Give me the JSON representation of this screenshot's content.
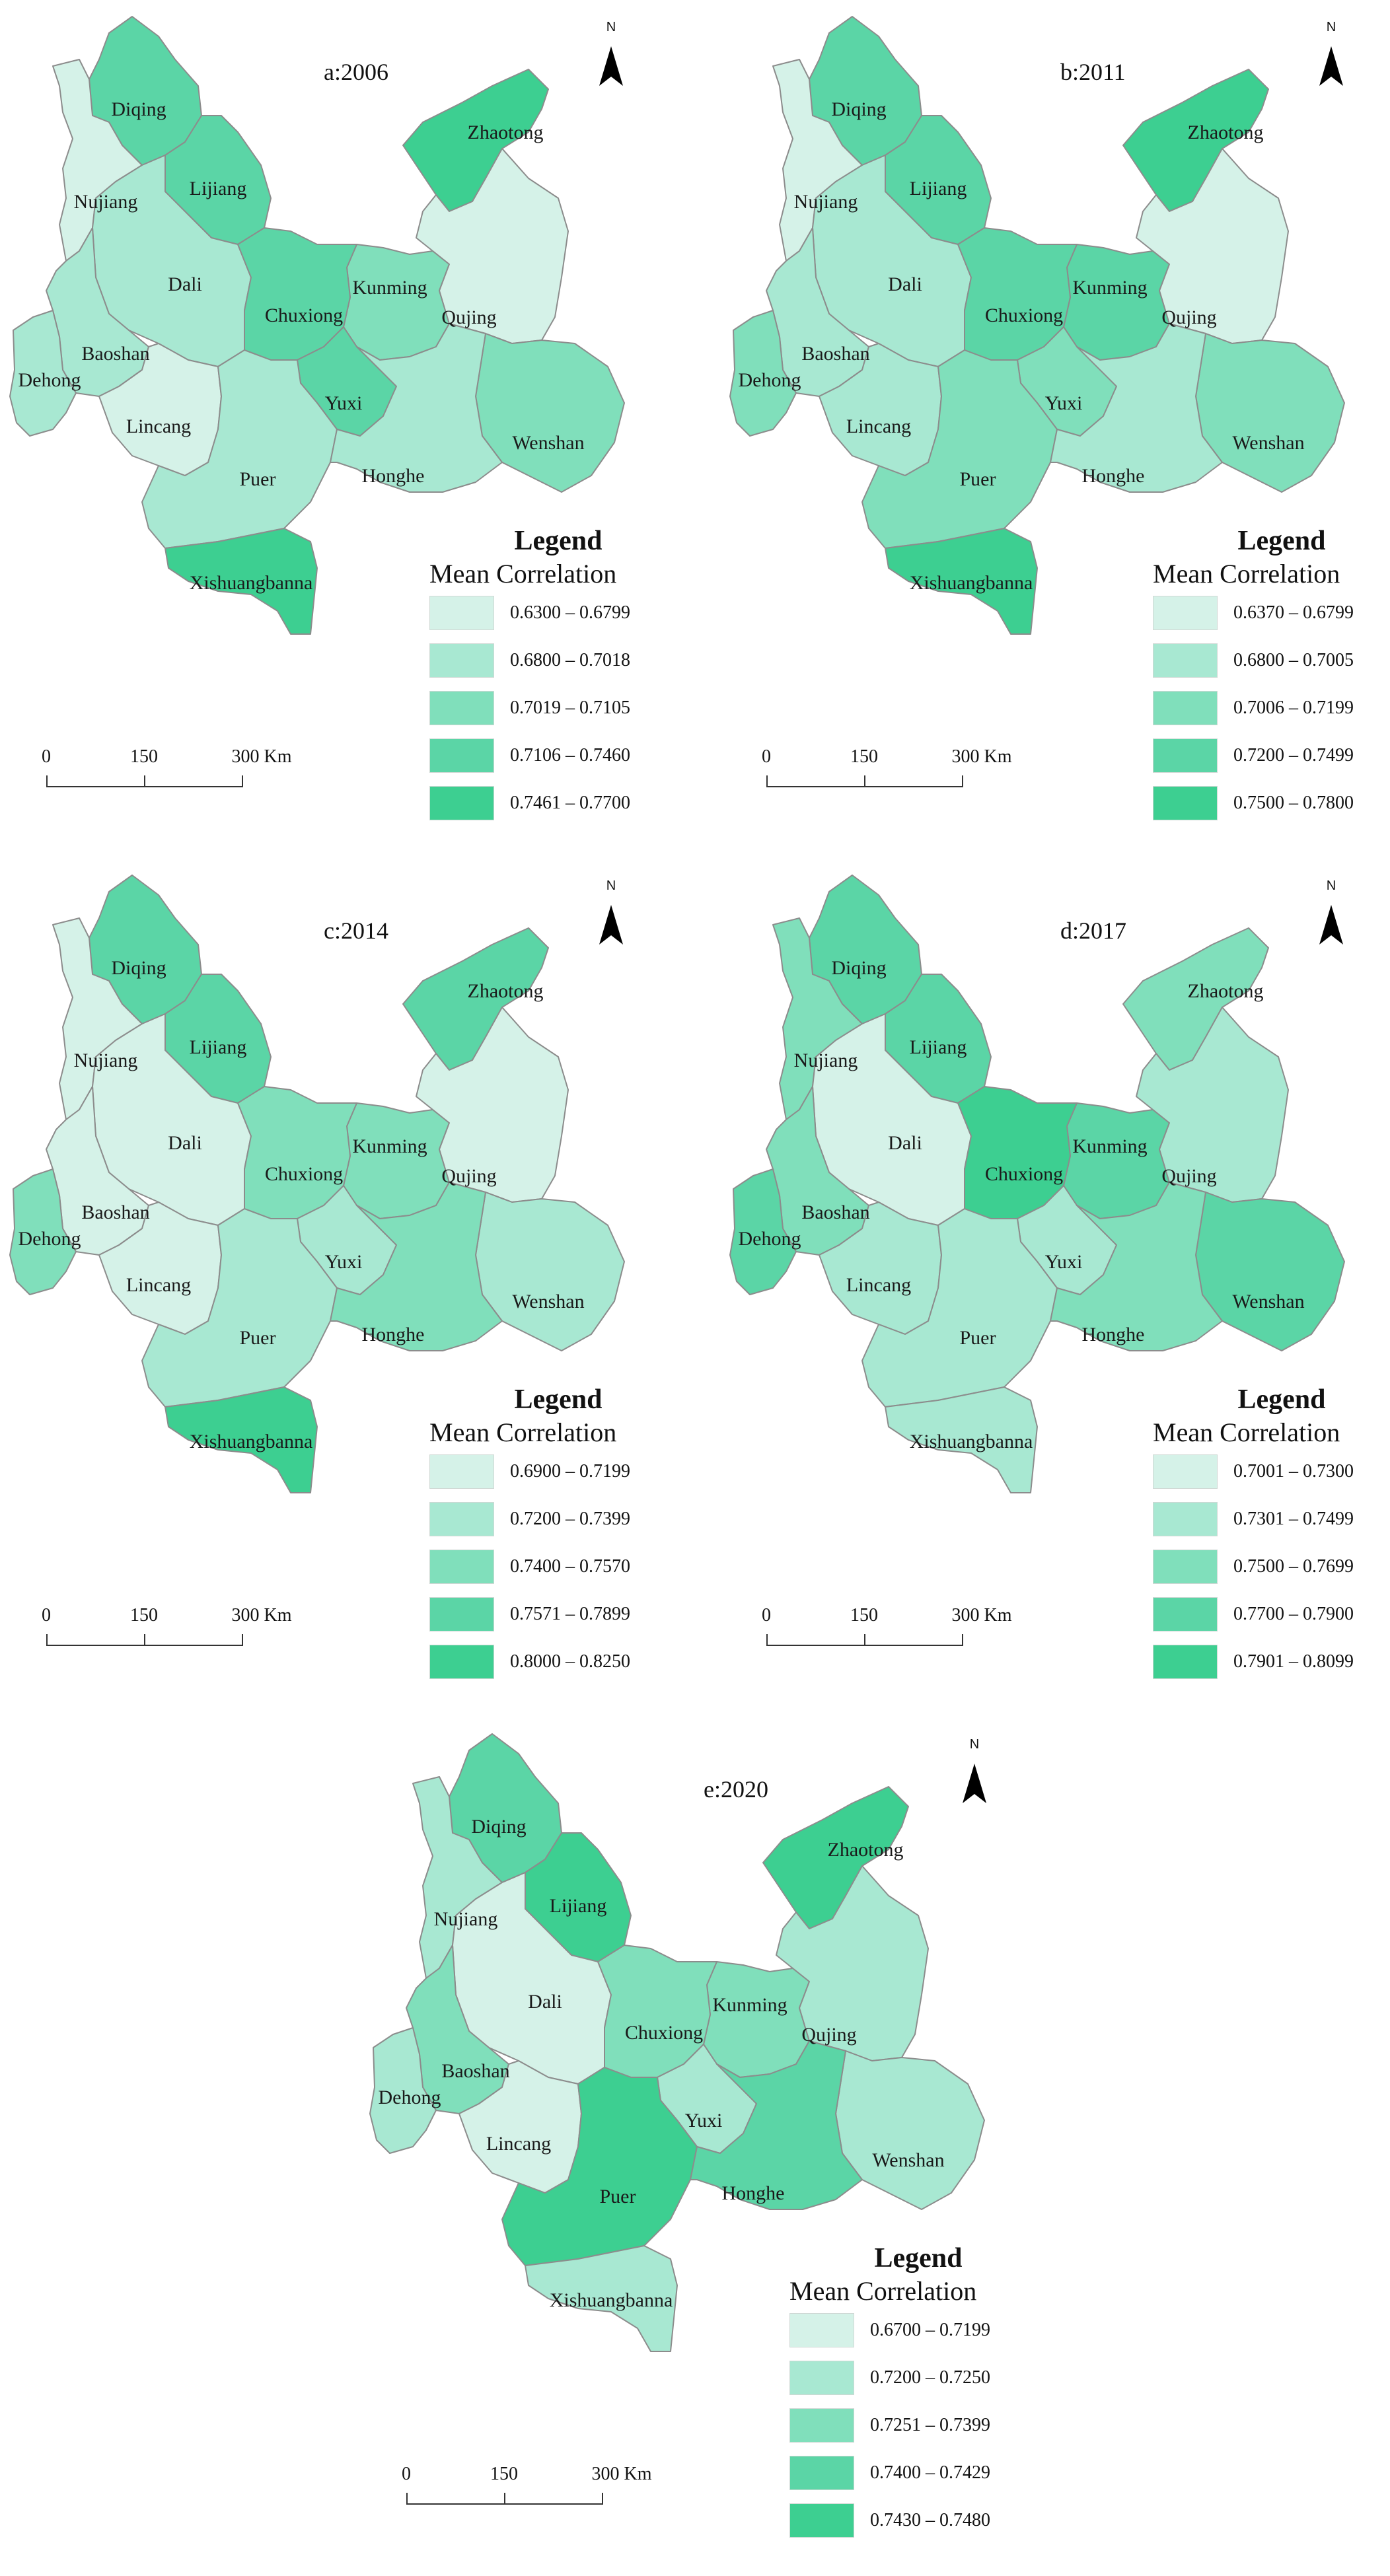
{
  "panels": [
    {
      "title": "a:2006",
      "legend": {
        "title": "Legend",
        "subtitle": "Mean Correlation",
        "classes": [
          {
            "range": "0.6300 – 0.6799",
            "color": "#d5f2e8"
          },
          {
            "range": "0.6800 – 0.7018",
            "color": "#a8e8d2"
          },
          {
            "range": "0.7019 – 0.7105",
            "color": "#80dfbb"
          },
          {
            "range": "0.7106 – 0.7460",
            "color": "#5bd5a6"
          },
          {
            "range": "0.7461 – 0.7700",
            "color": "#3dcf91"
          }
        ]
      },
      "regions": {
        "Diqing": 3,
        "Nujiang": 0,
        "Lijiang": 3,
        "Zhaotong": 4,
        "Dali": 1,
        "Kunming": 2,
        "Chuxiong": 3,
        "Qujing": 0,
        "Baoshan": 1,
        "Dehong": 1,
        "Lincang": 0,
        "Yuxi": 3,
        "Wenshan": 2,
        "Puer": 1,
        "Honghe": 1,
        "Xishuangbanna": 4
      }
    },
    {
      "title": "b:2011",
      "legend": {
        "title": "Legend",
        "subtitle": "Mean Correlation",
        "classes": [
          {
            "range": "0.6370 – 0.6799",
            "color": "#d5f2e8"
          },
          {
            "range": "0.6800 – 0.7005",
            "color": "#a8e8d2"
          },
          {
            "range": "0.7006 – 0.7199",
            "color": "#80dfbb"
          },
          {
            "range": "0.7200 – 0.7499",
            "color": "#5bd5a6"
          },
          {
            "range": "0.7500 – 0.7800",
            "color": "#3dcf91"
          }
        ]
      },
      "regions": {
        "Diqing": 3,
        "Nujiang": 0,
        "Lijiang": 3,
        "Zhaotong": 4,
        "Dali": 1,
        "Kunming": 3,
        "Chuxiong": 3,
        "Qujing": 0,
        "Baoshan": 1,
        "Dehong": 2,
        "Lincang": 1,
        "Yuxi": 2,
        "Wenshan": 2,
        "Puer": 2,
        "Honghe": 1,
        "Xishuangbanna": 4
      }
    },
    {
      "title": "c:2014",
      "legend": {
        "title": "Legend",
        "subtitle": "Mean Correlation",
        "classes": [
          {
            "range": "0.6900 – 0.7199",
            "color": "#d5f2e8"
          },
          {
            "range": "0.7200 – 0.7399",
            "color": "#a8e8d2"
          },
          {
            "range": "0.7400 – 0.7570",
            "color": "#80dfbb"
          },
          {
            "range": "0.7571 – 0.7899",
            "color": "#5bd5a6"
          },
          {
            "range": "0.8000 – 0.8250",
            "color": "#3dcf91"
          }
        ]
      },
      "regions": {
        "Diqing": 3,
        "Nujiang": 0,
        "Lijiang": 3,
        "Zhaotong": 3,
        "Dali": 0,
        "Kunming": 2,
        "Chuxiong": 2,
        "Qujing": 0,
        "Baoshan": 0,
        "Dehong": 2,
        "Lincang": 0,
        "Yuxi": 1,
        "Wenshan": 1,
        "Puer": 1,
        "Honghe": 2,
        "Xishuangbanna": 4
      }
    },
    {
      "title": "d:2017",
      "legend": {
        "title": "Legend",
        "subtitle": "Mean Correlation",
        "classes": [
          {
            "range": "0.7001 – 0.7300",
            "color": "#d5f2e8"
          },
          {
            "range": "0.7301 – 0.7499",
            "color": "#a8e8d2"
          },
          {
            "range": "0.7500 – 0.7699",
            "color": "#80dfbb"
          },
          {
            "range": "0.7700 – 0.7900",
            "color": "#5bd5a6"
          },
          {
            "range": "0.7901 – 0.8099",
            "color": "#3dcf91"
          }
        ]
      },
      "regions": {
        "Diqing": 3,
        "Nujiang": 2,
        "Lijiang": 3,
        "Zhaotong": 2,
        "Dali": 0,
        "Kunming": 3,
        "Chuxiong": 4,
        "Qujing": 1,
        "Baoshan": 2,
        "Dehong": 3,
        "Lincang": 1,
        "Yuxi": 1,
        "Wenshan": 3,
        "Puer": 1,
        "Honghe": 2,
        "Xishuangbanna": 1
      }
    },
    {
      "title": "e:2020",
      "legend": {
        "title": "Legend",
        "subtitle": "Mean Correlation",
        "classes": [
          {
            "range": "0.6700 – 0.7199",
            "color": "#d5f2e8"
          },
          {
            "range": "0.7200 – 0.7250",
            "color": "#a8e8d2"
          },
          {
            "range": "0.7251 – 0.7399",
            "color": "#80dfbb"
          },
          {
            "range": "0.7400 – 0.7429",
            "color": "#5bd5a6"
          },
          {
            "range": "0.7430 – 0.7480",
            "color": "#3dcf91"
          }
        ]
      },
      "regions": {
        "Diqing": 3,
        "Nujiang": 1,
        "Lijiang": 4,
        "Zhaotong": 4,
        "Dali": 0,
        "Kunming": 2,
        "Chuxiong": 2,
        "Qujing": 1,
        "Baoshan": 2,
        "Dehong": 1,
        "Lincang": 0,
        "Yuxi": 1,
        "Wenshan": 1,
        "Puer": 4,
        "Honghe": 3,
        "Xishuangbanna": 1
      }
    }
  ],
  "north_label": "N",
  "scale": {
    "ticks": [
      "0",
      "150",
      "300 Km"
    ]
  },
  "region_names": [
    "Diqing",
    "Nujiang",
    "Lijiang",
    "Zhaotong",
    "Dali",
    "Kunming",
    "Chuxiong",
    "Qujing",
    "Baoshan",
    "Dehong",
    "Lincang",
    "Yuxi",
    "Wenshan",
    "Puer",
    "Honghe",
    "Xishuangbanna"
  ]
}
